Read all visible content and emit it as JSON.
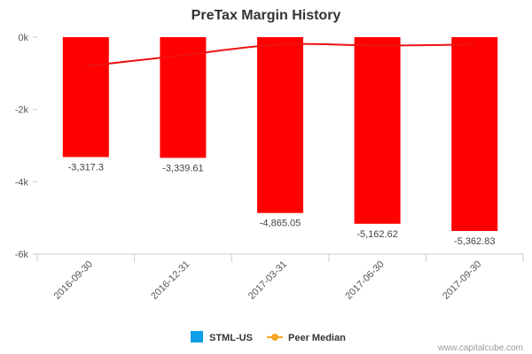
{
  "chart_data": {
    "type": "bar",
    "title": "PreTax Margin History",
    "categories": [
      "2016-09-30",
      "2016-12-31",
      "2017-03-31",
      "2017-06-30",
      "2017-09-30"
    ],
    "series": [
      {
        "name": "STML-US",
        "type": "bar",
        "color": "#ff0000",
        "values": [
          -3317.3,
          -3339.61,
          -4865.05,
          -5162.62,
          -5362.83
        ],
        "data_labels": [
          "-3,317.3",
          "-3,339.61",
          "-4,865.05",
          "-5,162.62",
          "-5,362.83"
        ]
      },
      {
        "name": "Peer Median",
        "type": "line",
        "color": "#ee1111",
        "values": [
          -800,
          -500,
          -200,
          -230,
          -200
        ]
      }
    ],
    "ylim": [
      -6000,
      0
    ],
    "yticks": [
      0,
      -2000,
      -4000,
      -6000
    ],
    "ytick_labels": [
      "0k",
      "-2k",
      "-4k",
      "-6k"
    ],
    "legend": {
      "placement": "bottom-center",
      "items": [
        {
          "label": "STML-US",
          "swatch_color": "#0d9ee8",
          "marker": "square"
        },
        {
          "label": "Peer Median",
          "swatch_color": "#f5a623",
          "marker": "line-dot"
        }
      ]
    },
    "grid": false
  },
  "credit": "www.capitalcube.com"
}
